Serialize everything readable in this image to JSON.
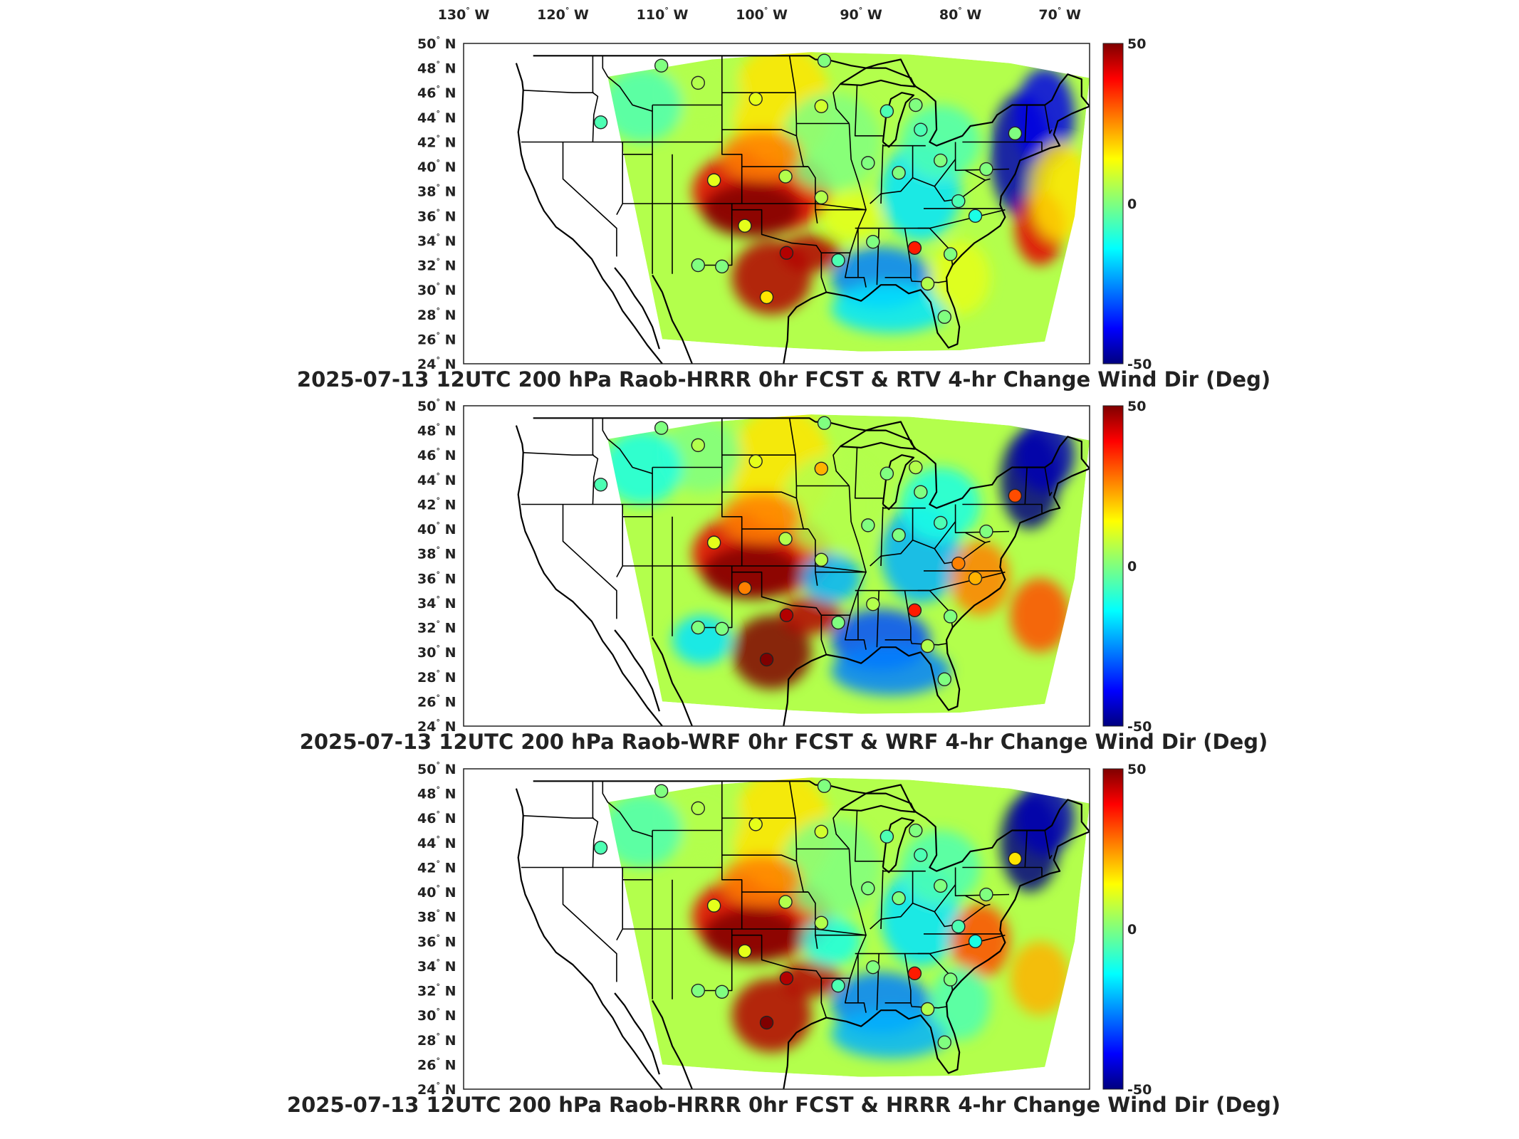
{
  "figure": {
    "lon_ticks": [
      "130",
      "120",
      "110",
      "100",
      "90",
      "80",
      "70"
    ],
    "lon_suffix": "W",
    "lat_suffix": "N",
    "lat_ticks": [
      "50",
      "48",
      "46",
      "44",
      "42",
      "40",
      "38",
      "36",
      "34",
      "32",
      "30",
      "28",
      "26",
      "24"
    ],
    "colormap": "jet"
  },
  "chart_data": [
    {
      "type": "heatmap",
      "title": "2025-07-13 12UTC 200 hPa Raob-HRRR 0hr FCST & RTV 4-hr Change Wind Dir (Deg)",
      "x_range": [
        -130,
        -67
      ],
      "y_range": [
        24,
        50
      ],
      "colorbar": {
        "min": -50,
        "max": 50,
        "ticks": [
          "50",
          "0",
          "-50"
        ]
      },
      "stations": [
        {
          "lon": -110.1,
          "lat": 48.2,
          "value": 0
        },
        {
          "lon": -106.4,
          "lat": 46.8,
          "value": 5
        },
        {
          "lon": -100.6,
          "lat": 45.5,
          "value": 10
        },
        {
          "lon": -93.7,
          "lat": 48.6,
          "value": 0
        },
        {
          "lon": -94.0,
          "lat": 44.9,
          "value": 8
        },
        {
          "lon": -116.2,
          "lat": 43.6,
          "value": -5
        },
        {
          "lon": -104.8,
          "lat": 38.9,
          "value": 10
        },
        {
          "lon": -97.6,
          "lat": 39.2,
          "value": 5
        },
        {
          "lon": -94.0,
          "lat": 37.5,
          "value": 5
        },
        {
          "lon": -101.7,
          "lat": 35.2,
          "value": 10
        },
        {
          "lon": -97.5,
          "lat": 33.0,
          "value": 45
        },
        {
          "lon": -106.4,
          "lat": 32.0,
          "value": 0
        },
        {
          "lon": -104.0,
          "lat": 31.9,
          "value": 0
        },
        {
          "lon": -99.5,
          "lat": 29.4,
          "value": 15
        },
        {
          "lon": -92.3,
          "lat": 32.4,
          "value": -5
        },
        {
          "lon": -88.8,
          "lat": 33.9,
          "value": 0
        },
        {
          "lon": -84.6,
          "lat": 33.4,
          "value": 35
        },
        {
          "lon": -87.4,
          "lat": 44.5,
          "value": -5
        },
        {
          "lon": -84.5,
          "lat": 45.0,
          "value": 0
        },
        {
          "lon": -84.0,
          "lat": 43.0,
          "value": -5
        },
        {
          "lon": -89.3,
          "lat": 40.3,
          "value": 0
        },
        {
          "lon": -86.2,
          "lat": 39.5,
          "value": 0
        },
        {
          "lon": -82.0,
          "lat": 40.5,
          "value": 0
        },
        {
          "lon": -80.2,
          "lat": 37.2,
          "value": -5
        },
        {
          "lon": -78.5,
          "lat": 36.0,
          "value": -10
        },
        {
          "lon": -81.0,
          "lat": 32.9,
          "value": 0
        },
        {
          "lon": -83.3,
          "lat": 30.5,
          "value": 5
        },
        {
          "lon": -81.6,
          "lat": 27.8,
          "value": 0
        },
        {
          "lon": -74.5,
          "lat": 42.7,
          "value": 0
        },
        {
          "lon": -77.4,
          "lat": 39.8,
          "value": 0
        }
      ]
    },
    {
      "type": "heatmap",
      "title": "2025-07-13 12UTC 200 hPa Raob-WRF 0hr FCST & WRF 4-hr Change Wind Dir (Deg)",
      "x_range": [
        -130,
        -67
      ],
      "y_range": [
        24,
        50
      ],
      "colorbar": {
        "min": -50,
        "max": 50,
        "ticks": [
          "50",
          "0",
          "-50"
        ]
      },
      "stations": [
        {
          "lon": -110.1,
          "lat": 48.2,
          "value": 0
        },
        {
          "lon": -106.4,
          "lat": 46.8,
          "value": 5
        },
        {
          "lon": -100.6,
          "lat": 45.5,
          "value": 10
        },
        {
          "lon": -93.7,
          "lat": 48.6,
          "value": 0
        },
        {
          "lon": -94.0,
          "lat": 44.9,
          "value": 20
        },
        {
          "lon": -116.2,
          "lat": 43.6,
          "value": -5
        },
        {
          "lon": -104.8,
          "lat": 38.9,
          "value": 10
        },
        {
          "lon": -97.6,
          "lat": 39.2,
          "value": 5
        },
        {
          "lon": -94.0,
          "lat": 37.5,
          "value": 5
        },
        {
          "lon": -101.7,
          "lat": 35.2,
          "value": 25
        },
        {
          "lon": -97.5,
          "lat": 33.0,
          "value": 45
        },
        {
          "lon": -106.4,
          "lat": 32.0,
          "value": 0
        },
        {
          "lon": -104.0,
          "lat": 31.9,
          "value": 0
        },
        {
          "lon": -99.5,
          "lat": 29.4,
          "value": 50
        },
        {
          "lon": -92.3,
          "lat": 32.4,
          "value": 0
        },
        {
          "lon": -88.8,
          "lat": 33.9,
          "value": 5
        },
        {
          "lon": -84.6,
          "lat": 33.4,
          "value": 35
        },
        {
          "lon": -87.4,
          "lat": 44.5,
          "value": 0
        },
        {
          "lon": -84.5,
          "lat": 45.0,
          "value": 5
        },
        {
          "lon": -84.0,
          "lat": 43.0,
          "value": 0
        },
        {
          "lon": -89.3,
          "lat": 40.3,
          "value": 0
        },
        {
          "lon": -86.2,
          "lat": 39.5,
          "value": 0
        },
        {
          "lon": -82.0,
          "lat": 40.5,
          "value": -5
        },
        {
          "lon": -80.2,
          "lat": 37.2,
          "value": 25
        },
        {
          "lon": -78.5,
          "lat": 36.0,
          "value": 20
        },
        {
          "lon": -81.0,
          "lat": 32.9,
          "value": 0
        },
        {
          "lon": -83.3,
          "lat": 30.5,
          "value": 5
        },
        {
          "lon": -81.6,
          "lat": 27.8,
          "value": 0
        },
        {
          "lon": -74.5,
          "lat": 42.7,
          "value": 30
        },
        {
          "lon": -77.4,
          "lat": 39.8,
          "value": 0
        }
      ]
    },
    {
      "type": "heatmap",
      "title": "2025-07-13 12UTC 200 hPa Raob-HRRR 0hr FCST & HRRR 4-hr Change Wind Dir (Deg)",
      "x_range": [
        -130,
        -67
      ],
      "y_range": [
        24,
        50
      ],
      "colorbar": {
        "min": -50,
        "max": 50,
        "ticks": [
          "50",
          "0",
          "-50"
        ]
      },
      "stations": [
        {
          "lon": -110.1,
          "lat": 48.2,
          "value": 0
        },
        {
          "lon": -106.4,
          "lat": 46.8,
          "value": 5
        },
        {
          "lon": -100.6,
          "lat": 45.5,
          "value": 10
        },
        {
          "lon": -93.7,
          "lat": 48.6,
          "value": 0
        },
        {
          "lon": -94.0,
          "lat": 44.9,
          "value": 8
        },
        {
          "lon": -116.2,
          "lat": 43.6,
          "value": -5
        },
        {
          "lon": -104.8,
          "lat": 38.9,
          "value": 10
        },
        {
          "lon": -97.6,
          "lat": 39.2,
          "value": 5
        },
        {
          "lon": -94.0,
          "lat": 37.5,
          "value": 5
        },
        {
          "lon": -101.7,
          "lat": 35.2,
          "value": 10
        },
        {
          "lon": -97.5,
          "lat": 33.0,
          "value": 45
        },
        {
          "lon": -106.4,
          "lat": 32.0,
          "value": 0
        },
        {
          "lon": -104.0,
          "lat": 31.9,
          "value": 0
        },
        {
          "lon": -99.5,
          "lat": 29.4,
          "value": 50
        },
        {
          "lon": -92.3,
          "lat": 32.4,
          "value": -5
        },
        {
          "lon": -88.8,
          "lat": 33.9,
          "value": 0
        },
        {
          "lon": -84.6,
          "lat": 33.4,
          "value": 35
        },
        {
          "lon": -87.4,
          "lat": 44.5,
          "value": -5
        },
        {
          "lon": -84.5,
          "lat": 45.0,
          "value": 0
        },
        {
          "lon": -84.0,
          "lat": 43.0,
          "value": -5
        },
        {
          "lon": -89.3,
          "lat": 40.3,
          "value": 0
        },
        {
          "lon": -86.2,
          "lat": 39.5,
          "value": 0
        },
        {
          "lon": -82.0,
          "lat": 40.5,
          "value": 0
        },
        {
          "lon": -80.2,
          "lat": 37.2,
          "value": -5
        },
        {
          "lon": -78.5,
          "lat": 36.0,
          "value": -10
        },
        {
          "lon": -81.0,
          "lat": 32.9,
          "value": 0
        },
        {
          "lon": -83.3,
          "lat": 30.5,
          "value": 5
        },
        {
          "lon": -81.6,
          "lat": 27.8,
          "value": 0
        },
        {
          "lon": -74.5,
          "lat": 42.7,
          "value": 15
        },
        {
          "lon": -77.4,
          "lat": 39.8,
          "value": 0
        }
      ]
    }
  ]
}
